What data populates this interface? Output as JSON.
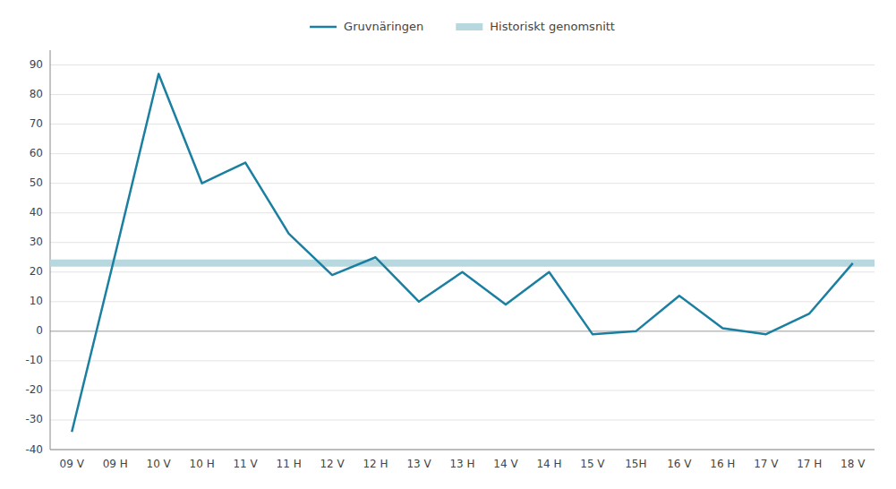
{
  "chart_data": {
    "type": "line",
    "categories": [
      "09 V",
      "09 H",
      "10 V",
      "10 H",
      "11 V",
      "11 H",
      "12 V",
      "12 H",
      "13 V",
      "13 H",
      "14 V",
      "14 H",
      "15 V",
      "15H",
      "16 V",
      "16 H",
      "17 V",
      "17 H",
      "18 V"
    ],
    "series": [
      {
        "name": "Gruvnäringen",
        "color": "#1a7fa0",
        "values": [
          -34,
          26,
          87,
          50,
          57,
          33,
          19,
          25,
          10,
          20,
          9,
          20,
          -1,
          0,
          12,
          1,
          -1,
          6,
          23
        ]
      },
      {
        "name": "Historiskt genomsnitt",
        "color": "#b8d8e0",
        "type": "hline",
        "value": 23
      }
    ],
    "ylim": [
      -40,
      95
    ],
    "yticks": [
      -40,
      -30,
      -20,
      -10,
      0,
      10,
      20,
      30,
      40,
      50,
      60,
      70,
      80,
      90
    ],
    "grid": true,
    "legend": "top"
  }
}
